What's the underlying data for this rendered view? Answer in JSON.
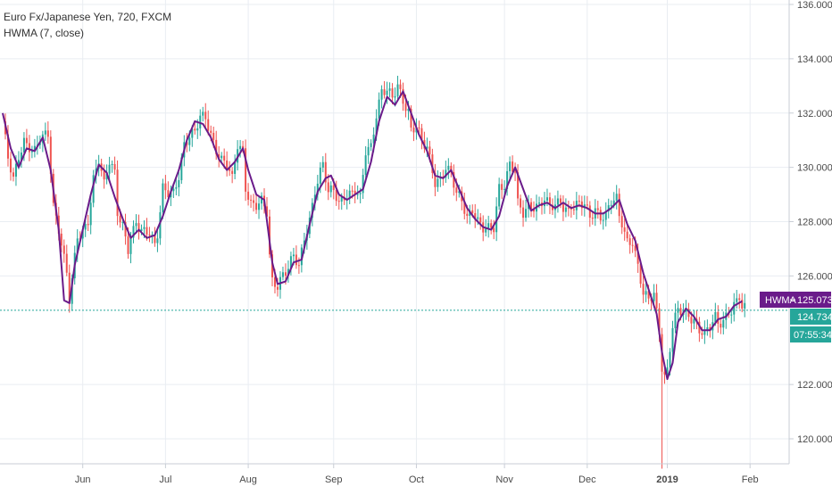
{
  "legend": {
    "symbol_line": "Euro Fx/Japanese Yen, 720, FXCM",
    "indicator_line": "HWMA (7, close)"
  },
  "price_scale": {
    "ticks": [
      "136.000",
      "134.000",
      "132.000",
      "130.000",
      "128.000",
      "126.000",
      "122.000",
      "120.000"
    ]
  },
  "time_scale": {
    "ticks": [
      "Jun",
      "Jul",
      "Aug",
      "Sep",
      "Oct",
      "Nov",
      "Dec",
      "2019",
      "Feb"
    ]
  },
  "badges": {
    "hwma_label": "HWMA",
    "hwma_value": "125.073",
    "last_price": "124.734",
    "countdown": "07:55:34"
  },
  "colors": {
    "up": "#26a69a",
    "down": "#ef5350",
    "hwma": "#6a1b8a",
    "grid": "#e9edf2",
    "axis_text": "#4a4a4a",
    "price_line": "#26a69a"
  },
  "chart_data": {
    "type": "candlestick",
    "title": "Euro Fx/Japanese Yen, 720, FXCM",
    "y_range": [
      119,
      136.2
    ],
    "x_ticks": [
      {
        "label": "Jun",
        "x": 30
      },
      {
        "label": "Jul",
        "x": 61
      },
      {
        "label": "Aug",
        "x": 92
      },
      {
        "label": "Sep",
        "x": 124
      },
      {
        "label": "Oct",
        "x": 155
      },
      {
        "label": "Nov",
        "x": 188
      },
      {
        "label": "Dec",
        "x": 219
      },
      {
        "label": "2019",
        "x": 249
      },
      {
        "label": "Feb",
        "x": 280
      }
    ],
    "x_range": [
      0,
      295
    ],
    "grid": true,
    "last_price": 124.734,
    "hwma_last": 125.073,
    "close_series": [
      [
        0,
        131.7
      ],
      [
        2,
        130.3
      ],
      [
        4,
        129.5
      ],
      [
        6,
        130.4
      ],
      [
        8,
        131.0
      ],
      [
        10,
        130.8
      ],
      [
        12,
        130.6
      ],
      [
        14,
        131.0
      ],
      [
        17,
        131.2
      ],
      [
        19,
        128.6
      ],
      [
        21,
        127.8
      ],
      [
        24,
        126.1
      ],
      [
        25,
        125.1
      ],
      [
        26,
        125.8
      ],
      [
        28,
        127.4
      ],
      [
        30,
        127.6
      ],
      [
        32,
        128.1
      ],
      [
        34,
        129.6
      ],
      [
        36,
        130.3
      ],
      [
        38,
        129.3
      ],
      [
        40,
        130.2
      ],
      [
        42,
        129.8
      ],
      [
        43,
        128.4
      ],
      [
        45,
        127.9
      ],
      [
        47,
        127.0
      ],
      [
        48,
        127.4
      ],
      [
        49,
        127.6
      ],
      [
        50,
        127.9
      ],
      [
        52,
        127.6
      ],
      [
        55,
        127.7
      ],
      [
        57,
        127.2
      ],
      [
        58,
        127.6
      ],
      [
        60,
        129.2
      ],
      [
        62,
        129.0
      ],
      [
        64,
        129.0
      ],
      [
        66,
        129.7
      ],
      [
        68,
        130.9
      ],
      [
        70,
        131.2
      ],
      [
        72,
        131.3
      ],
      [
        74,
        131.8
      ],
      [
        76,
        131.8
      ],
      [
        78,
        131.2
      ],
      [
        80,
        130.7
      ],
      [
        82,
        130.3
      ],
      [
        84,
        130.1
      ],
      [
        86,
        129.5
      ],
      [
        88,
        130.8
      ],
      [
        90,
        130.6
      ],
      [
        91,
        129.3
      ],
      [
        93,
        128.7
      ],
      [
        95,
        128.6
      ],
      [
        97,
        128.7
      ],
      [
        99,
        128.3
      ],
      [
        100,
        126.7
      ],
      [
        101,
        125.8
      ],
      [
        103,
        125.7
      ],
      [
        105,
        126.1
      ],
      [
        107,
        126.3
      ],
      [
        109,
        126.7
      ],
      [
        111,
        126.3
      ],
      [
        113,
        127.4
      ],
      [
        115,
        128.1
      ],
      [
        117,
        129.2
      ],
      [
        119,
        129.8
      ],
      [
        120,
        130.1
      ],
      [
        122,
        129.0
      ],
      [
        124,
        129.2
      ],
      [
        126,
        128.7
      ],
      [
        128,
        129.0
      ],
      [
        130,
        129.0
      ],
      [
        132,
        129.1
      ],
      [
        134,
        128.8
      ],
      [
        136,
        130.6
      ],
      [
        138,
        130.8
      ],
      [
        140,
        132.0
      ],
      [
        142,
        132.8
      ],
      [
        144,
        132.8
      ],
      [
        146,
        132.5
      ],
      [
        148,
        133.0
      ],
      [
        150,
        132.5
      ],
      [
        152,
        132.1
      ],
      [
        153,
        131.4
      ],
      [
        155,
        131.5
      ],
      [
        157,
        130.9
      ],
      [
        159,
        130.7
      ],
      [
        160,
        130.3
      ],
      [
        162,
        129.5
      ],
      [
        164,
        129.6
      ],
      [
        166,
        130.0
      ],
      [
        168,
        129.7
      ],
      [
        170,
        129.0
      ],
      [
        172,
        128.8
      ],
      [
        174,
        128.2
      ],
      [
        176,
        128.5
      ],
      [
        178,
        128.0
      ],
      [
        180,
        127.7
      ],
      [
        182,
        127.7
      ],
      [
        184,
        127.8
      ],
      [
        186,
        129.3
      ],
      [
        188,
        129.4
      ],
      [
        190,
        130.1
      ],
      [
        192,
        129.8
      ],
      [
        193,
        128.6
      ],
      [
        195,
        128.3
      ],
      [
        197,
        128.6
      ],
      [
        199,
        128.6
      ],
      [
        201,
        128.6
      ],
      [
        203,
        128.8
      ],
      [
        205,
        128.5
      ],
      [
        207,
        128.6
      ],
      [
        209,
        128.8
      ],
      [
        210,
        128.6
      ],
      [
        212,
        128.4
      ],
      [
        213,
        128.6
      ],
      [
        214,
        128.5
      ],
      [
        216,
        128.6
      ],
      [
        218,
        128.6
      ],
      [
        220,
        128.2
      ],
      [
        222,
        128.5
      ],
      [
        224,
        128.2
      ],
      [
        226,
        128.2
      ],
      [
        228,
        128.7
      ],
      [
        230,
        128.8
      ],
      [
        231,
        128.2
      ],
      [
        232,
        128.0
      ],
      [
        234,
        127.3
      ],
      [
        236,
        127.3
      ],
      [
        238,
        126.3
      ],
      [
        240,
        125.3
      ],
      [
        242,
        125.1
      ],
      [
        244,
        125.4
      ],
      [
        246,
        124.0
      ],
      [
        247,
        122.7
      ],
      [
        248,
        122.3
      ],
      [
        249,
        122.5
      ],
      [
        251,
        124.1
      ],
      [
        253,
        124.7
      ],
      [
        255,
        124.7
      ],
      [
        257,
        124.6
      ],
      [
        259,
        124.4
      ],
      [
        261,
        124.0
      ],
      [
        263,
        123.8
      ],
      [
        265,
        124.1
      ],
      [
        267,
        124.5
      ],
      [
        268,
        124.3
      ],
      [
        270,
        124.4
      ],
      [
        272,
        124.7
      ],
      [
        273,
        124.7
      ],
      [
        275,
        125.0
      ],
      [
        276,
        125.2
      ],
      [
        277,
        124.8
      ]
    ],
    "hwma_series": [
      [
        0,
        132.0
      ],
      [
        3,
        130.7
      ],
      [
        6,
        130.0
      ],
      [
        9,
        130.7
      ],
      [
        12,
        130.6
      ],
      [
        15,
        131.1
      ],
      [
        18,
        129.9
      ],
      [
        21,
        127.7
      ],
      [
        23,
        125.1
      ],
      [
        25,
        125.0
      ],
      [
        27,
        126.4
      ],
      [
        30,
        127.7
      ],
      [
        33,
        129.0
      ],
      [
        36,
        130.1
      ],
      [
        39,
        129.8
      ],
      [
        42,
        128.9
      ],
      [
        45,
        128.1
      ],
      [
        48,
        127.4
      ],
      [
        51,
        127.7
      ],
      [
        54,
        127.4
      ],
      [
        57,
        127.5
      ],
      [
        60,
        128.2
      ],
      [
        63,
        129.1
      ],
      [
        66,
        129.9
      ],
      [
        69,
        131.0
      ],
      [
        72,
        131.7
      ],
      [
        75,
        131.6
      ],
      [
        78,
        131.1
      ],
      [
        81,
        130.3
      ],
      [
        84,
        129.9
      ],
      [
        87,
        130.2
      ],
      [
        90,
        130.7
      ],
      [
        92,
        129.9
      ],
      [
        95,
        129.0
      ],
      [
        98,
        128.8
      ],
      [
        101,
        126.5
      ],
      [
        103,
        125.7
      ],
      [
        106,
        125.8
      ],
      [
        109,
        126.5
      ],
      [
        112,
        126.6
      ],
      [
        115,
        127.9
      ],
      [
        118,
        129.1
      ],
      [
        121,
        129.6
      ],
      [
        123,
        129.7
      ],
      [
        126,
        129.0
      ],
      [
        129,
        128.8
      ],
      [
        132,
        129.0
      ],
      [
        135,
        129.2
      ],
      [
        138,
        130.2
      ],
      [
        141,
        131.7
      ],
      [
        144,
        132.6
      ],
      [
        147,
        132.3
      ],
      [
        150,
        132.8
      ],
      [
        153,
        132.0
      ],
      [
        156,
        131.2
      ],
      [
        159,
        130.6
      ],
      [
        162,
        129.7
      ],
      [
        165,
        129.6
      ],
      [
        168,
        129.9
      ],
      [
        171,
        129.2
      ],
      [
        174,
        128.5
      ],
      [
        177,
        128.1
      ],
      [
        180,
        127.8
      ],
      [
        183,
        127.7
      ],
      [
        186,
        128.2
      ],
      [
        189,
        129.3
      ],
      [
        192,
        130.0
      ],
      [
        195,
        129.2
      ],
      [
        198,
        128.4
      ],
      [
        201,
        128.6
      ],
      [
        204,
        128.7
      ],
      [
        207,
        128.5
      ],
      [
        210,
        128.7
      ],
      [
        213,
        128.5
      ],
      [
        216,
        128.6
      ],
      [
        219,
        128.5
      ],
      [
        222,
        128.3
      ],
      [
        225,
        128.3
      ],
      [
        228,
        128.5
      ],
      [
        231,
        128.8
      ],
      [
        234,
        127.9
      ],
      [
        237,
        127.3
      ],
      [
        240,
        126.1
      ],
      [
        243,
        125.2
      ],
      [
        245,
        124.6
      ],
      [
        247,
        123.2
      ],
      [
        249,
        122.2
      ],
      [
        251,
        122.8
      ],
      [
        253,
        124.3
      ],
      [
        256,
        124.8
      ],
      [
        259,
        124.5
      ],
      [
        262,
        124.0
      ],
      [
        265,
        124.0
      ],
      [
        268,
        124.4
      ],
      [
        271,
        124.5
      ],
      [
        274,
        124.9
      ],
      [
        277,
        125.07
      ]
    ],
    "spike_low": {
      "x": 247,
      "low": 118.9
    }
  }
}
